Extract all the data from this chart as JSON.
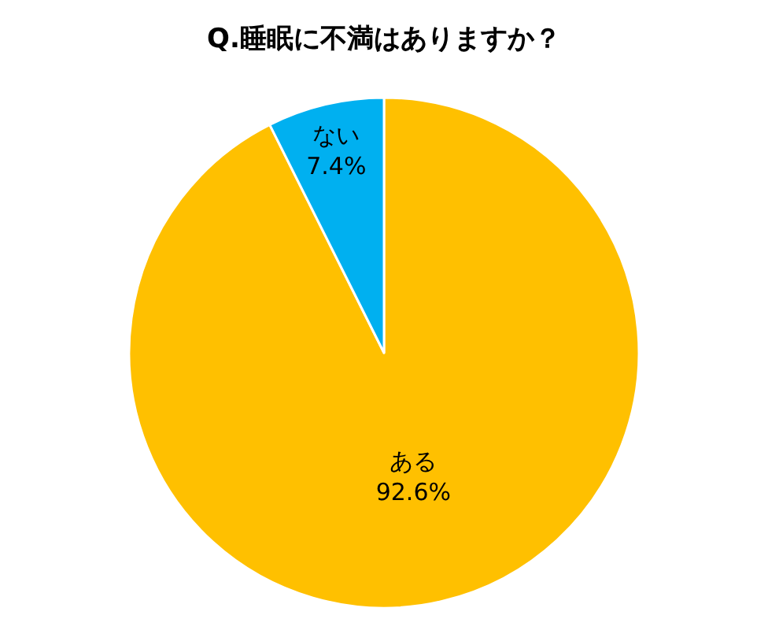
{
  "chart_data": {
    "type": "pie",
    "title": "Q.睡眠に不満はありますか？",
    "categories": [
      "ある",
      "ない"
    ],
    "values": [
      92.6,
      7.4
    ],
    "colors": [
      "#ffc000",
      "#00b0f0"
    ],
    "value_labels": [
      "92.6%",
      "7.4%"
    ],
    "legend": false
  }
}
